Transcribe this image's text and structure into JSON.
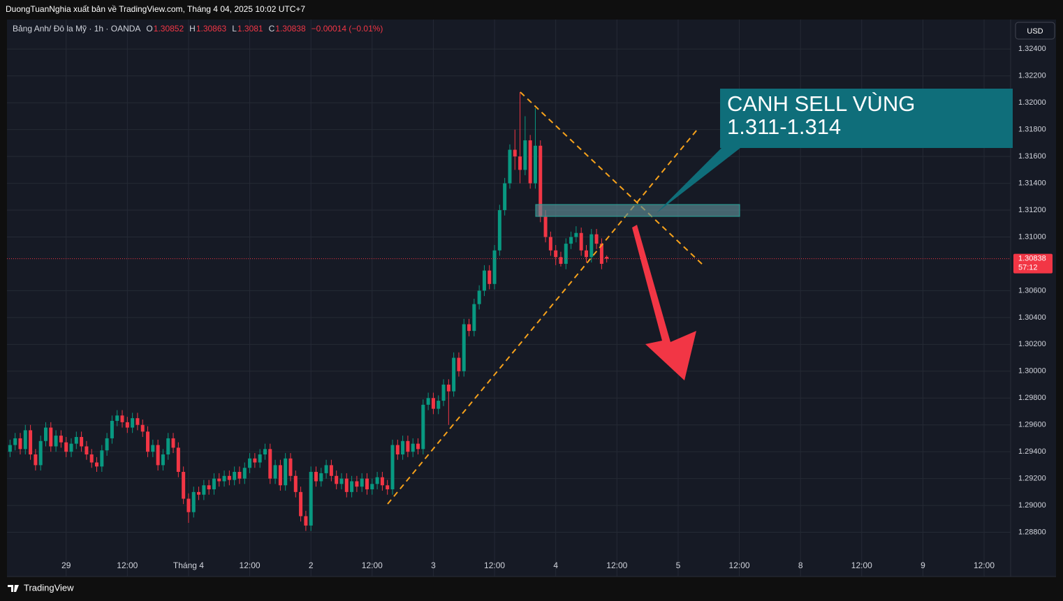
{
  "header": {
    "publisher": "DuongTuanNghia xuất bản về TradingView.com, Tháng 4 04, 2025 10:02 UTC+7",
    "brand": "TradingView"
  },
  "chart_data": {
    "type": "candlestick",
    "symbol": "Bảng Anh/ Đô la Mỹ · 1h · OANDA",
    "ohlc_labels": [
      "O",
      "H",
      "L",
      "C"
    ],
    "change": "−0.00014 (−0.01%)",
    "currency": "USD",
    "countdown": "57:12",
    "annotation": [
      "CANH SELL VÙNG",
      "1.311-1.314"
    ],
    "up_color": "#089981",
    "down_color": "#f23645",
    "grid": true,
    "xlim": [
      -11.6,
      185.2
    ],
    "ylim": [
      1.2847,
      1.3262
    ],
    "xticks": [
      {
        "value": 0,
        "label": "29"
      },
      {
        "value": 12,
        "label": "12:00"
      },
      {
        "value": 24,
        "label": "Tháng 4"
      },
      {
        "value": 36,
        "label": "12:00"
      },
      {
        "value": 48,
        "label": "2"
      },
      {
        "value": 60,
        "label": "12:00"
      },
      {
        "value": 72,
        "label": "3"
      },
      {
        "value": 84,
        "label": "12:00"
      },
      {
        "value": 96,
        "label": "4"
      },
      {
        "value": 108,
        "label": "12:00"
      },
      {
        "value": 120,
        "label": "5"
      },
      {
        "value": 132,
        "label": "12:00"
      },
      {
        "value": 144,
        "label": "8"
      },
      {
        "value": 156,
        "label": "12:00"
      },
      {
        "value": 168,
        "label": "9"
      },
      {
        "value": 180,
        "label": "12:00"
      }
    ],
    "yticks": [
      {
        "value": 1.324,
        "label": "1.32400"
      },
      {
        "value": 1.322,
        "label": "1.32200"
      },
      {
        "value": 1.32,
        "label": "1.32000"
      },
      {
        "value": 1.318,
        "label": "1.31800"
      },
      {
        "value": 1.316,
        "label": "1.31600"
      },
      {
        "value": 1.314,
        "label": "1.31400"
      },
      {
        "value": 1.312,
        "label": "1.31200"
      },
      {
        "value": 1.31,
        "label": "1.31000"
      },
      {
        "value": 1.306,
        "label": "1.30600"
      },
      {
        "value": 1.304,
        "label": "1.30400"
      },
      {
        "value": 1.302,
        "label": "1.30200"
      },
      {
        "value": 1.3,
        "label": "1.30000"
      },
      {
        "value": 1.298,
        "label": "1.29800"
      },
      {
        "value": 1.296,
        "label": "1.29600"
      },
      {
        "value": 1.294,
        "label": "1.29400"
      },
      {
        "value": 1.292,
        "label": "1.29200"
      },
      {
        "value": 1.29,
        "label": "1.29000"
      },
      {
        "value": 1.288,
        "label": "1.28800"
      }
    ],
    "x": [
      -11,
      -10,
      -9,
      -8,
      -7,
      -6,
      -5,
      -4,
      -3,
      -2,
      -1,
      0,
      1,
      2,
      3,
      4,
      5,
      6,
      7,
      8,
      9,
      10,
      11,
      12,
      13,
      14,
      15,
      16,
      17,
      18,
      19,
      20,
      21,
      22,
      23,
      24,
      25,
      26,
      27,
      28,
      29,
      30,
      31,
      32,
      33,
      34,
      35,
      36,
      37,
      38,
      39,
      40,
      41,
      42,
      43,
      44,
      45,
      46,
      47,
      48,
      49,
      50,
      51,
      52,
      53,
      54,
      55,
      56,
      57,
      58,
      59,
      60,
      61,
      62,
      63,
      64,
      65,
      66,
      67,
      68,
      69,
      70,
      71,
      72,
      73,
      74,
      75,
      76,
      77,
      78,
      79,
      80,
      81,
      82,
      83,
      84,
      85,
      86,
      87,
      88,
      89,
      90,
      91,
      92,
      93,
      94,
      95,
      96,
      97,
      98,
      99,
      100,
      101,
      102,
      103,
      104,
      105,
      106
    ],
    "candles": [
      [
        1.294,
        1.2949,
        1.2936,
        1.2945
      ],
      [
        1.2945,
        1.2954,
        1.2941,
        1.295
      ],
      [
        1.295,
        1.2954,
        1.2938,
        1.2942
      ],
      [
        1.2942,
        1.296,
        1.2938,
        1.2956
      ],
      [
        1.2956,
        1.296,
        1.2934,
        1.2938
      ],
      [
        1.2938,
        1.2942,
        1.2926,
        1.293
      ],
      [
        1.293,
        1.2952,
        1.2926,
        1.2948
      ],
      [
        1.2948,
        1.2962,
        1.2944,
        1.2958
      ],
      [
        1.2958,
        1.2962,
        1.294,
        1.2944
      ],
      [
        1.2944,
        1.2956,
        1.294,
        1.2952
      ],
      [
        1.2952,
        1.2956,
        1.2943,
        1.2947
      ],
      [
        1.2947,
        1.2951,
        1.2936,
        1.294
      ],
      [
        1.294,
        1.295,
        1.2936,
        1.2946
      ],
      [
        1.2946,
        1.2955,
        1.2942,
        1.2951
      ],
      [
        1.2951,
        1.2955,
        1.294,
        1.2944
      ],
      [
        1.2944,
        1.2948,
        1.2934,
        1.2938
      ],
      [
        1.2938,
        1.2942,
        1.2928,
        1.2932
      ],
      [
        1.2932,
        1.2936,
        1.2925,
        1.2929
      ],
      [
        1.2929,
        1.2945,
        1.2925,
        1.2941
      ],
      [
        1.2941,
        1.2954,
        1.2937,
        1.295
      ],
      [
        1.295,
        1.2967,
        1.2946,
        1.2963
      ],
      [
        1.2963,
        1.2971,
        1.2959,
        1.2967
      ],
      [
        1.2967,
        1.2971,
        1.2958,
        1.2962
      ],
      [
        1.2962,
        1.2966,
        1.2954,
        1.2958
      ],
      [
        1.2958,
        1.2969,
        1.2954,
        1.2965
      ],
      [
        1.2965,
        1.2969,
        1.2956,
        1.296
      ],
      [
        1.296,
        1.2964,
        1.2951,
        1.2955
      ],
      [
        1.2955,
        1.2959,
        1.2936,
        1.294
      ],
      [
        1.294,
        1.2949,
        1.2936,
        1.2945
      ],
      [
        1.2945,
        1.2949,
        1.2926,
        1.293
      ],
      [
        1.293,
        1.2942,
        1.2926,
        1.2938
      ],
      [
        1.2938,
        1.2954,
        1.2934,
        1.295
      ],
      [
        1.295,
        1.2954,
        1.2939,
        1.2943
      ],
      [
        1.2943,
        1.2947,
        1.2921,
        1.2925
      ],
      [
        1.2925,
        1.2929,
        1.2901,
        1.2905
      ],
      [
        1.2905,
        1.2909,
        1.2887,
        1.2895
      ],
      [
        1.2895,
        1.2914,
        1.2891,
        1.291
      ],
      [
        1.291,
        1.2914,
        1.2904,
        1.2908
      ],
      [
        1.2908,
        1.2919,
        1.2904,
        1.2915
      ],
      [
        1.2915,
        1.2919,
        1.2908,
        1.2912
      ],
      [
        1.2912,
        1.2924,
        1.2908,
        1.292
      ],
      [
        1.292,
        1.2924,
        1.2914,
        1.2918
      ],
      [
        1.2918,
        1.2926,
        1.2914,
        1.2922
      ],
      [
        1.2922,
        1.2926,
        1.2915,
        1.2919
      ],
      [
        1.2919,
        1.2929,
        1.2915,
        1.2925
      ],
      [
        1.2925,
        1.2929,
        1.2916,
        1.292
      ],
      [
        1.292,
        1.2932,
        1.2916,
        1.2928
      ],
      [
        1.2928,
        1.2939,
        1.2924,
        1.2935
      ],
      [
        1.2935,
        1.2939,
        1.2928,
        1.2932
      ],
      [
        1.2932,
        1.2942,
        1.2928,
        1.2938
      ],
      [
        1.2938,
        1.2946,
        1.2934,
        1.2942
      ],
      [
        1.2942,
        1.2946,
        1.2916,
        1.292
      ],
      [
        1.292,
        1.2934,
        1.2916,
        1.293
      ],
      [
        1.293,
        1.2934,
        1.2911,
        1.2915
      ],
      [
        1.2915,
        1.2939,
        1.2911,
        1.2935
      ],
      [
        1.2935,
        1.2939,
        1.2918,
        1.2922
      ],
      [
        1.2922,
        1.2926,
        1.2906,
        1.291
      ],
      [
        1.291,
        1.2914,
        1.2888,
        1.2892
      ],
      [
        1.2892,
        1.2896,
        1.2881,
        1.2885
      ],
      [
        1.2885,
        1.2929,
        1.2881,
        1.2925
      ],
      [
        1.2925,
        1.2929,
        1.2914,
        1.2918
      ],
      [
        1.2918,
        1.2928,
        1.2914,
        1.2924
      ],
      [
        1.2924,
        1.2934,
        1.292,
        1.293
      ],
      [
        1.293,
        1.2934,
        1.2918,
        1.2922
      ],
      [
        1.2922,
        1.2926,
        1.2912,
        1.2916
      ],
      [
        1.2916,
        1.2924,
        1.2912,
        1.292
      ],
      [
        1.292,
        1.2924,
        1.2906,
        1.291
      ],
      [
        1.291,
        1.2922,
        1.2906,
        1.2918
      ],
      [
        1.2918,
        1.2922,
        1.291,
        1.2914
      ],
      [
        1.2914,
        1.2924,
        1.291,
        1.292
      ],
      [
        1.292,
        1.2924,
        1.2908,
        1.2912
      ],
      [
        1.2912,
        1.292,
        1.2908,
        1.2916
      ],
      [
        1.2916,
        1.2925,
        1.2912,
        1.2921
      ],
      [
        1.2921,
        1.2925,
        1.2911,
        1.2915
      ],
      [
        1.2915,
        1.2919,
        1.2908,
        1.2912
      ],
      [
        1.2912,
        1.2949,
        1.2908,
        1.2945
      ],
      [
        1.2945,
        1.2949,
        1.2934,
        1.2938
      ],
      [
        1.2938,
        1.2952,
        1.2934,
        1.2948
      ],
      [
        1.2948,
        1.2952,
        1.2936,
        1.294
      ],
      [
        1.294,
        1.295,
        1.2936,
        1.2946
      ],
      [
        1.2946,
        1.295,
        1.2938,
        1.2942
      ],
      [
        1.2942,
        1.2979,
        1.2938,
        1.2975
      ],
      [
        1.2975,
        1.2984,
        1.2971,
        1.298
      ],
      [
        1.298,
        1.2984,
        1.2968,
        1.2972
      ],
      [
        1.2972,
        1.2982,
        1.2968,
        1.2978
      ],
      [
        1.2978,
        1.2994,
        1.2974,
        1.299
      ],
      [
        1.299,
        1.2994,
        1.296,
        1.2985
      ],
      [
        1.2985,
        1.3014,
        1.2981,
        1.301
      ],
      [
        1.301,
        1.3014,
        1.2996,
        1.3
      ],
      [
        1.3,
        1.3039,
        1.2996,
        1.3035
      ],
      [
        1.3035,
        1.3039,
        1.3026,
        1.303
      ],
      [
        1.303,
        1.3054,
        1.3026,
        1.305
      ],
      [
        1.305,
        1.3064,
        1.3046,
        1.306
      ],
      [
        1.306,
        1.3079,
        1.3056,
        1.3075
      ],
      [
        1.3075,
        1.3079,
        1.3061,
        1.3065
      ],
      [
        1.3065,
        1.3094,
        1.3061,
        1.309
      ],
      [
        1.309,
        1.3124,
        1.3086,
        1.312
      ],
      [
        1.312,
        1.3144,
        1.3116,
        1.314
      ],
      [
        1.314,
        1.3169,
        1.3136,
        1.3165
      ],
      [
        1.3165,
        1.318,
        1.315,
        1.316
      ],
      [
        1.316,
        1.3208,
        1.314,
        1.315
      ],
      [
        1.315,
        1.319,
        1.3146,
        1.3172
      ],
      [
        1.3172,
        1.3176,
        1.3136,
        1.314
      ],
      [
        1.314,
        1.3196,
        1.3136,
        1.3168
      ],
      [
        1.3168,
        1.3172,
        1.3111,
        1.3115
      ],
      [
        1.3115,
        1.312,
        1.3096,
        1.31
      ],
      [
        1.31,
        1.3104,
        1.3086,
        1.309
      ],
      [
        1.309,
        1.3094,
        1.3079,
        1.3085
      ],
      [
        1.3085,
        1.3089,
        1.3078,
        1.308
      ],
      [
        1.308,
        1.3099,
        1.3076,
        1.3095
      ],
      [
        1.3095,
        1.3104,
        1.3091,
        1.31
      ],
      [
        1.31,
        1.3108,
        1.3096,
        1.3103
      ],
      [
        1.3103,
        1.3107,
        1.3086,
        1.309
      ],
      [
        1.309,
        1.3094,
        1.3081,
        1.3085
      ],
      [
        1.3085,
        1.3106,
        1.3081,
        1.3102
      ],
      [
        1.3102,
        1.3106,
        1.3091,
        1.3095
      ],
      [
        1.3095,
        1.3099,
        1.3076,
        1.308
      ],
      [
        1.30852,
        1.30863,
        1.3081,
        1.30838
      ]
    ]
  }
}
